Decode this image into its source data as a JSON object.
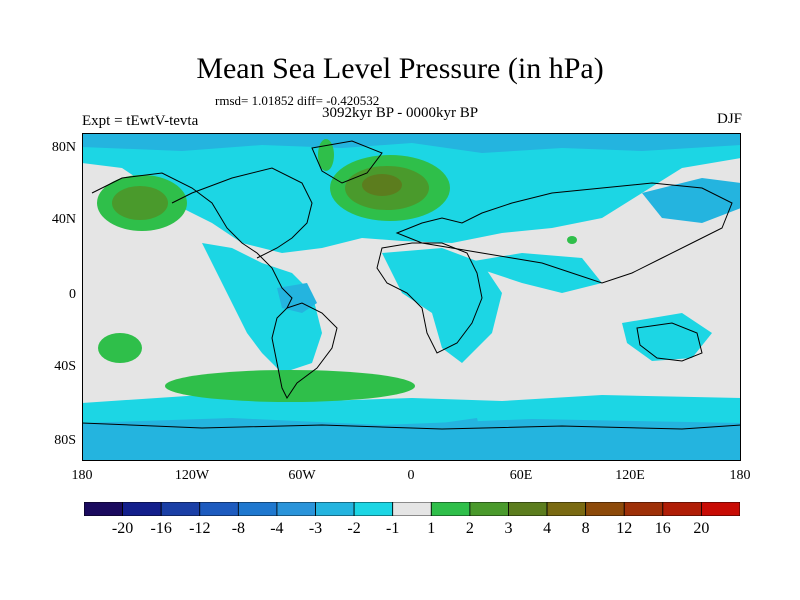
{
  "title": "Mean Sea Level Pressure (in hPa)",
  "stats": "rmsd= 1.01852 diff= -0.420532",
  "experiment": "Expt = tEwtV-tevta",
  "period": "3092kyr BP - 0000kyr BP",
  "season": "DJF",
  "lat_labels": [
    "80N",
    "40N",
    "0",
    "40S",
    "80S"
  ],
  "lon_labels": [
    "180",
    "120W",
    "60W",
    "0",
    "60E",
    "120E",
    "180"
  ],
  "colorbar": {
    "colors": [
      "#1a0a5e",
      "#131f8c",
      "#1a3fa6",
      "#1d5bbf",
      "#1f78cf",
      "#2a94da",
      "#24b4df",
      "#1cd6e4",
      "#e5e5e5",
      "#2fbf4a",
      "#4a9a2c",
      "#5c7d1e",
      "#7a6a12",
      "#8d4a0a",
      "#9e3008",
      "#b01d06",
      "#c80b04"
    ],
    "labels": [
      "-20",
      "-16",
      "-12",
      "-8",
      "-4",
      "-3",
      "-2",
      "-1",
      "1",
      "2",
      "3",
      "4",
      "8",
      "12",
      "16",
      "20"
    ]
  },
  "colors": {
    "neutral": "#e5e5e5",
    "neg1": "#1cd6e4",
    "neg2": "#24b4df",
    "pos1": "#2fbf4a",
    "pos2": "#4a9a2c",
    "pos3": "#5c7d1e",
    "pos4": "#7a6a12"
  }
}
